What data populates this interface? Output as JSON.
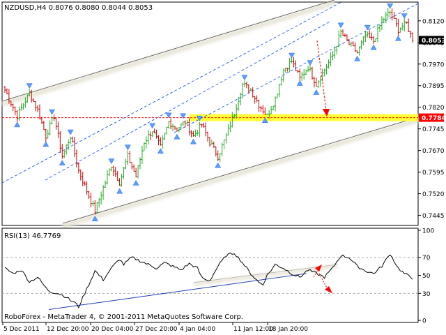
{
  "chart_data": [
    {
      "type": "bar",
      "style": "ohlc",
      "title": "NZDUSD,H4  0.8076 0.8080 0.8044 0.8053",
      "symbol": "NZDUSD",
      "timeframe": "H4",
      "last_ohlc": {
        "open": 0.8076,
        "high": 0.808,
        "low": 0.8044,
        "close": 0.8053
      },
      "ylim": [
        0.741,
        0.8185
      ],
      "y_ticks": [
        "0.8120",
        "0.8045",
        "0.7970",
        "0.7895",
        "0.7820",
        "0.7745",
        "0.7670",
        "0.7595",
        "0.7520",
        "0.7445"
      ],
      "price_tags": [
        {
          "label": "0.8053",
          "value": 0.8053,
          "style": "current",
          "color": "#000000"
        },
        {
          "label": "0.7784",
          "value": 0.7784,
          "style": "level",
          "color": "#ff0000"
        }
      ],
      "x_labels": [
        "5 Dec 2011",
        "12 Dec 20:00",
        "20 Dec 04:00",
        "27 Dec 20:00",
        "4 Jan 04:00",
        "11 Jan 12:00",
        "18 Jan 20:00"
      ],
      "bull_color": "#22aa22",
      "bear_color": "#cc0000",
      "level_color": "#ffff33",
      "channel_color": "#1e5aff",
      "wide_channel_color": "#555555",
      "legend": "none",
      "grid": false,
      "price_path": [
        [
          0,
          0.788
        ],
        [
          6,
          0.779
        ],
        [
          12,
          0.787
        ],
        [
          16,
          0.781
        ],
        [
          20,
          0.772
        ],
        [
          24,
          0.779
        ],
        [
          28,
          0.765
        ],
        [
          32,
          0.772
        ],
        [
          36,
          0.76
        ],
        [
          40,
          0.753
        ],
        [
          44,
          0.746
        ],
        [
          48,
          0.754
        ],
        [
          52,
          0.762
        ],
        [
          56,
          0.756
        ],
        [
          60,
          0.765
        ],
        [
          64,
          0.758
        ],
        [
          68,
          0.77
        ],
        [
          72,
          0.774
        ],
        [
          76,
          0.768
        ],
        [
          80,
          0.777
        ],
        [
          84,
          0.7745
        ],
        [
          88,
          0.777
        ],
        [
          92,
          0.772
        ],
        [
          96,
          0.776
        ],
        [
          100,
          0.77
        ],
        [
          104,
          0.765
        ],
        [
          108,
          0.772
        ],
        [
          112,
          0.78
        ],
        [
          116,
          0.79
        ],
        [
          120,
          0.788
        ],
        [
          124,
          0.783
        ],
        [
          128,
          0.779
        ],
        [
          132,
          0.785
        ],
        [
          136,
          0.795
        ],
        [
          140,
          0.798
        ],
        [
          144,
          0.792
        ],
        [
          148,
          0.796
        ],
        [
          152,
          0.79
        ],
        [
          156,
          0.795
        ],
        [
          160,
          0.8
        ],
        [
          164,
          0.808
        ],
        [
          168,
          0.804
        ],
        [
          172,
          0.801
        ],
        [
          176,
          0.807
        ],
        [
          180,
          0.805
        ],
        [
          184,
          0.812
        ],
        [
          188,
          0.815
        ],
        [
          192,
          0.809
        ],
        [
          196,
          0.811
        ],
        [
          199,
          0.8053
        ]
      ]
    },
    {
      "type": "line",
      "title": "RSI(13) 46.7769",
      "ylim": [
        0,
        100
      ],
      "y_ticks": [
        "100",
        "70",
        "50",
        "30",
        "0"
      ],
      "levels": [
        70,
        30
      ],
      "line_color": "#000000",
      "trend_color": "#1e3cb4",
      "values": [
        [
          0,
          58
        ],
        [
          4,
          52
        ],
        [
          8,
          56
        ],
        [
          12,
          43
        ],
        [
          16,
          48
        ],
        [
          20,
          36
        ],
        [
          22,
          32
        ],
        [
          26,
          30
        ],
        [
          30,
          26
        ],
        [
          32,
          22
        ],
        [
          34,
          20
        ],
        [
          36,
          15
        ],
        [
          40,
          35
        ],
        [
          44,
          55
        ],
        [
          48,
          45
        ],
        [
          52,
          58
        ],
        [
          56,
          68
        ],
        [
          58,
          62
        ],
        [
          62,
          70
        ],
        [
          66,
          66
        ],
        [
          70,
          62
        ],
        [
          74,
          58
        ],
        [
          78,
          64
        ],
        [
          82,
          60
        ],
        [
          86,
          56
        ],
        [
          90,
          63
        ],
        [
          94,
          58
        ],
        [
          96,
          48
        ],
        [
          98,
          45
        ],
        [
          100,
          44
        ],
        [
          104,
          60
        ],
        [
          108,
          72
        ],
        [
          112,
          75
        ],
        [
          116,
          64
        ],
        [
          120,
          52
        ],
        [
          124,
          42
        ],
        [
          126,
          40
        ],
        [
          128,
          50
        ],
        [
          132,
          62
        ],
        [
          136,
          58
        ],
        [
          140,
          52
        ],
        [
          144,
          48
        ],
        [
          148,
          56
        ],
        [
          152,
          52
        ],
        [
          156,
          48
        ],
        [
          160,
          58
        ],
        [
          164,
          72
        ],
        [
          168,
          70
        ],
        [
          172,
          60
        ],
        [
          176,
          55
        ],
        [
          180,
          52
        ],
        [
          184,
          60
        ],
        [
          188,
          74
        ],
        [
          192,
          58
        ],
        [
          195,
          52
        ],
        [
          199,
          46.8
        ]
      ]
    }
  ],
  "footer": {
    "copyright": "RoboForex - MetaTrader 4, © 2001-2011 MetaQuotes Software Corp."
  }
}
